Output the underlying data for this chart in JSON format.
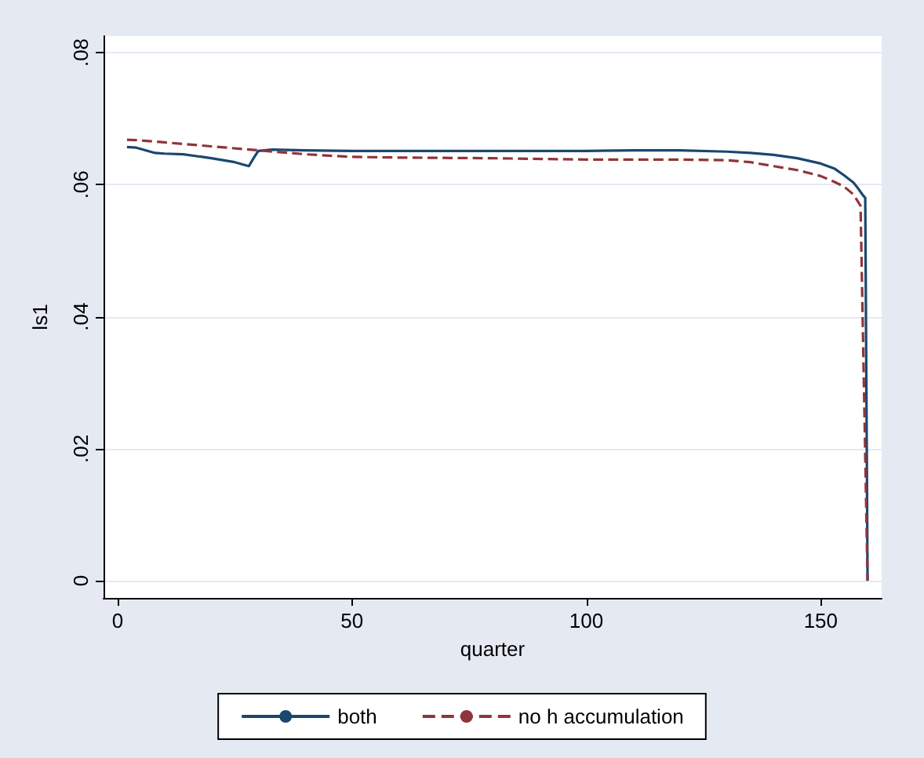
{
  "chart_data": {
    "type": "line",
    "xlabel": "quarter",
    "ylabel": "ls1",
    "xlim": [
      -3,
      163
    ],
    "xticks": [
      0,
      50,
      100,
      150
    ],
    "ylim": [
      -0.0026,
      0.0825
    ],
    "yticks": [
      {
        "value": 0,
        "label": "0"
      },
      {
        "value": 0.02,
        "label": ".02"
      },
      {
        "value": 0.04,
        "label": ".04"
      },
      {
        "value": 0.06,
        "label": ".06"
      },
      {
        "value": 0.08,
        "label": ".08"
      }
    ],
    "grid": "y",
    "legend": "bottom",
    "marker": "none",
    "series": [
      {
        "name": "both",
        "color": "#1a476f",
        "line_style": "solid",
        "x": [
          2,
          4,
          8,
          10,
          14,
          20,
          25,
          28,
          29,
          30,
          33,
          40,
          50,
          60,
          70,
          80,
          90,
          100,
          110,
          120,
          130,
          135,
          140,
          145,
          150,
          153,
          155,
          157,
          158,
          159,
          159.5,
          160
        ],
        "values": [
          0.0657,
          0.0656,
          0.0648,
          0.0647,
          0.0646,
          0.064,
          0.0634,
          0.0628,
          0.064,
          0.0651,
          0.0653,
          0.0652,
          0.0651,
          0.0651,
          0.0651,
          0.0651,
          0.0651,
          0.0651,
          0.0652,
          0.0652,
          0.065,
          0.0648,
          0.0645,
          0.064,
          0.0632,
          0.0624,
          0.0614,
          0.0603,
          0.0594,
          0.0584,
          0.058,
          0
        ]
      },
      {
        "name": "no h accumulation",
        "color": "#90353b",
        "line_style": "dashed",
        "x": [
          2,
          5,
          10,
          20,
          30,
          40,
          50,
          60,
          80,
          100,
          120,
          130,
          135,
          140,
          145,
          150,
          153,
          155,
          157,
          158.5,
          160
        ],
        "values": [
          0.0668,
          0.0667,
          0.0664,
          0.0658,
          0.0652,
          0.0646,
          0.0642,
          0.0641,
          0.064,
          0.0638,
          0.0638,
          0.0637,
          0.0634,
          0.0628,
          0.0622,
          0.0613,
          0.0604,
          0.0597,
          0.0585,
          0.0568,
          0
        ]
      }
    ]
  }
}
